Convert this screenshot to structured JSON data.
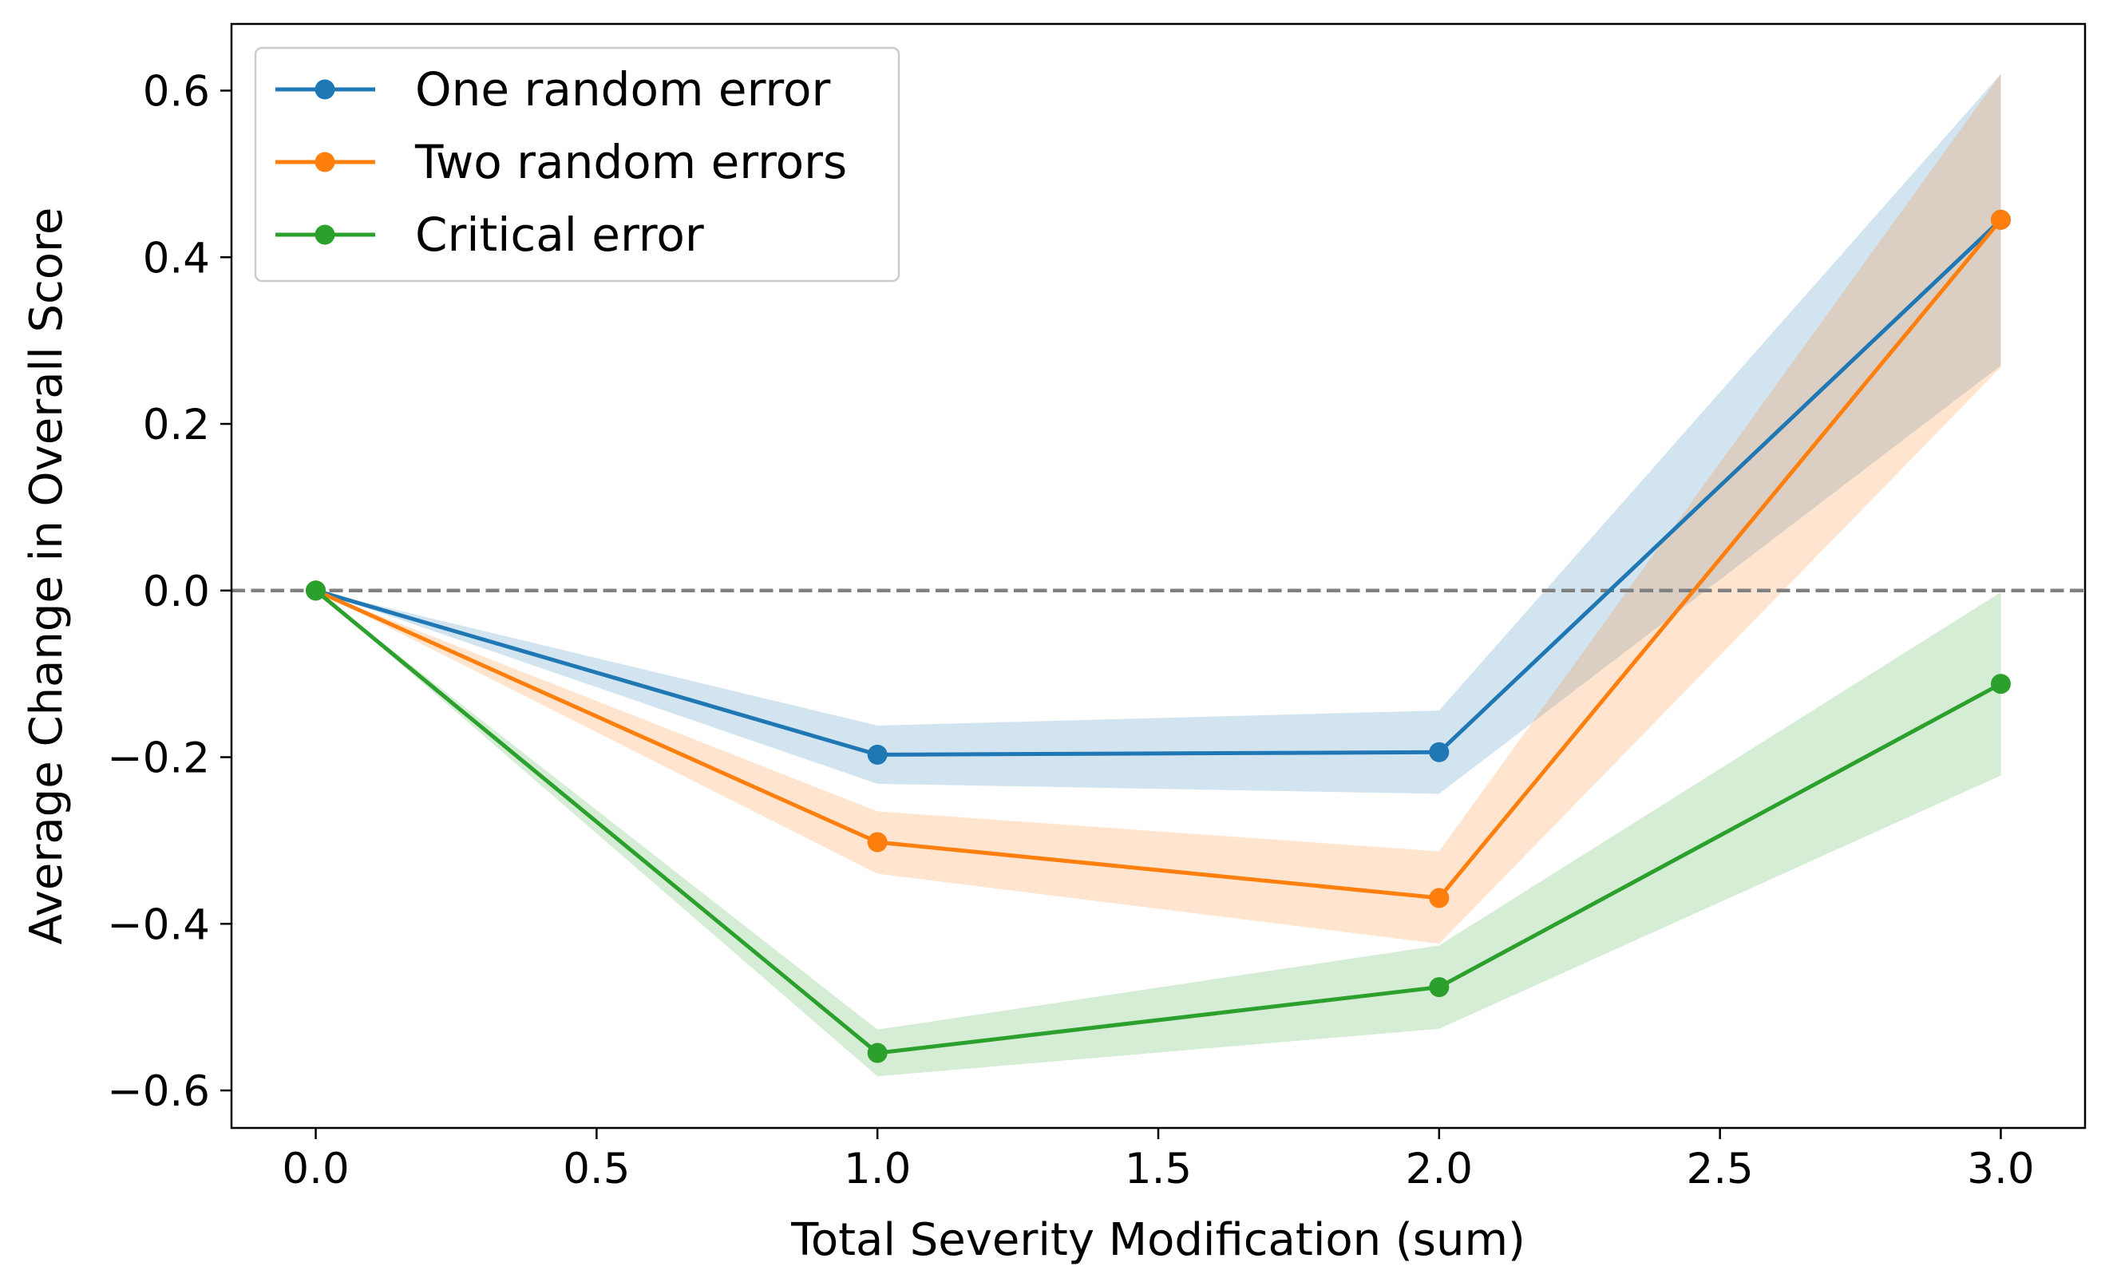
{
  "chart_data": {
    "type": "line",
    "xlabel": "Total Severity Modification (sum)",
    "ylabel": "Average Change in Overall Score",
    "xlim": [
      -0.15,
      3.15
    ],
    "ylim": [
      -0.645,
      0.68
    ],
    "xticks": [
      0.0,
      0.5,
      1.0,
      1.5,
      2.0,
      2.5,
      3.0
    ],
    "xtick_labels": [
      "0.0",
      "0.5",
      "1.0",
      "1.5",
      "2.0",
      "2.5",
      "3.0"
    ],
    "yticks": [
      0.6,
      0.4,
      0.2,
      0.0,
      -0.2,
      -0.4,
      -0.6
    ],
    "ytick_labels": [
      "0.6",
      "0.4",
      "0.2",
      "0.0",
      "−0.2",
      "−0.4",
      "−0.6"
    ],
    "grid": false,
    "legend_position": "upper-left",
    "reference_line": {
      "y": 0.0,
      "style": "dashed",
      "color": "#808080"
    },
    "x": [
      0.0,
      1.0,
      2.0,
      3.0
    ],
    "series": [
      {
        "name": "One random error",
        "color": "#1f77b4",
        "values": [
          0.0,
          -0.197,
          -0.194,
          0.445
        ],
        "lower": [
          0.0,
          -0.232,
          -0.244,
          0.27
        ],
        "upper": [
          0.0,
          -0.162,
          -0.144,
          0.62
        ]
      },
      {
        "name": "Two random errors",
        "color": "#ff7f0e",
        "values": [
          0.0,
          -0.302,
          -0.369,
          0.445
        ],
        "lower": [
          0.0,
          -0.34,
          -0.424,
          0.268
        ],
        "upper": [
          0.0,
          -0.265,
          -0.313,
          0.62
        ]
      },
      {
        "name": "Critical error",
        "color": "#2ca02c",
        "values": [
          0.0,
          -0.555,
          -0.476,
          -0.112
        ],
        "lower": [
          0.0,
          -0.583,
          -0.526,
          -0.222
        ],
        "upper": [
          0.0,
          -0.527,
          -0.426,
          -0.002
        ]
      }
    ]
  }
}
